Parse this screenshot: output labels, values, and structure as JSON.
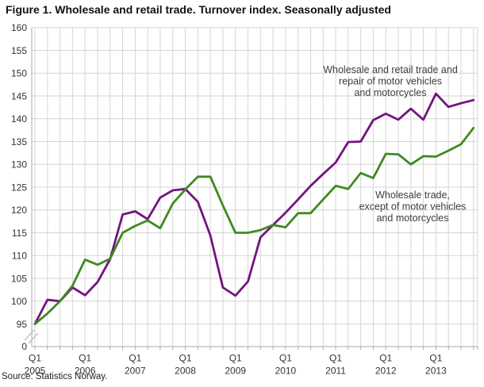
{
  "title": "Figure 1. Wholesale and retail trade. Turnover index. Seasonally adjusted",
  "source": "Source: Statistics Norway.",
  "colors": {
    "grid": "#d6d6d6",
    "axis": "#a8a8a8",
    "break_mark": "#c0c0c0",
    "tick_text": "#333333",
    "annotation_text": "#3d3d3d",
    "series_motor": "#71157d",
    "series_wholesale": "#3e8a1f"
  },
  "chart_data": {
    "type": "line",
    "title": "Figure 1. Wholesale and retail trade. Turnover index. Seasonally adjusted",
    "xlabel": "",
    "ylabel": "",
    "grid": true,
    "legend_position": "inline-annotations",
    "y_axis": {
      "min": 95,
      "max": 160,
      "step": 5,
      "axis_break_to_zero": true,
      "zero_label": "0"
    },
    "x_tick_labels": [
      {
        "top": "Q1",
        "bottom": "2005"
      },
      {
        "top": "Q1",
        "bottom": "2006"
      },
      {
        "top": "Q1",
        "bottom": "2007"
      },
      {
        "top": "Q1",
        "bottom": "2008"
      },
      {
        "top": "Q1",
        "bottom": "2009"
      },
      {
        "top": "Q1",
        "bottom": "2010"
      },
      {
        "top": "Q1",
        "bottom": "2011"
      },
      {
        "top": "Q1",
        "bottom": "2012"
      },
      {
        "top": "Q1",
        "bottom": "2013"
      }
    ],
    "categories": [
      "Q1 2005",
      "Q2 2005",
      "Q3 2005",
      "Q4 2005",
      "Q1 2006",
      "Q2 2006",
      "Q3 2006",
      "Q4 2006",
      "Q1 2007",
      "Q2 2007",
      "Q3 2007",
      "Q4 2007",
      "Q1 2008",
      "Q2 2008",
      "Q3 2008",
      "Q4 2008",
      "Q1 2009",
      "Q2 2009",
      "Q3 2009",
      "Q4 2009",
      "Q1 2010",
      "Q2 2010",
      "Q3 2010",
      "Q4 2010",
      "Q1 2011",
      "Q2 2011",
      "Q3 2011",
      "Q4 2011",
      "Q1 2012",
      "Q2 2012",
      "Q3 2012",
      "Q4 2012",
      "Q1 2013",
      "Q2 2013",
      "Q3 2013",
      "Q4 2013"
    ],
    "series": [
      {
        "id": "motor",
        "name": "Wholesale and retail trade and repair of motor vehicles and motorcycles",
        "label_lines": [
          "Wholesale and retail trade and",
          "repair of motor vehicles",
          "and motorcycles"
        ],
        "label_anchor": {
          "x": 492,
          "y": 92
        },
        "color": "#71157d",
        "values": [
          95,
          100.3,
          100,
          103,
          101.3,
          104.2,
          109.2,
          119,
          119.7,
          118,
          122.7,
          124.3,
          124.6,
          121.8,
          114.4,
          103,
          101.2,
          104.3,
          114,
          116.7,
          119.4,
          122.3,
          125.3,
          127.9,
          130.4,
          134.9,
          135,
          139.7,
          141.1,
          139.8,
          142.2,
          139.8,
          145.5,
          142.6,
          143.4,
          144.1
        ]
      },
      {
        "id": "wholesale",
        "name": "Wholesale trade, except of motor vehicles and motorcycles",
        "label_lines": [
          "Wholesale trade,",
          "except of motor vehicles",
          "and motorcycles"
        ],
        "label_anchor": {
          "x": 520,
          "y": 250
        },
        "color": "#3e8a1f",
        "values": [
          95,
          97.3,
          100,
          103.4,
          109.1,
          108,
          109.3,
          115,
          116.5,
          117.7,
          116,
          121.4,
          124.5,
          127.3,
          127.3,
          121,
          115,
          115,
          115.6,
          116.7,
          116.2,
          119.3,
          119.3,
          122.3,
          125.3,
          124.6,
          128.1,
          127,
          132.3,
          132.2,
          130,
          131.8,
          131.7,
          133,
          134.4,
          138
        ]
      }
    ]
  }
}
